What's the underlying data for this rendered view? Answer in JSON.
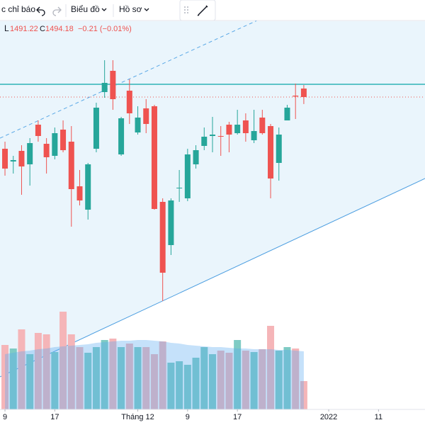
{
  "toolbar": {
    "indicators": "c chỉ báo",
    "chart": "Biểu đồ",
    "profile": "Hồ sơ"
  },
  "chart_data": {
    "type": "candlestick",
    "legend": {
      "low": "L",
      "close": "C",
      "change": "−0.21 (−0.01%)"
    },
    "x": [
      0,
      1,
      2,
      3,
      4,
      5,
      6,
      7,
      8,
      9,
      10,
      11,
      12,
      13,
      14,
      15,
      16,
      17,
      18,
      19,
      20,
      21,
      22,
      23,
      24,
      25,
      26,
      27,
      28,
      29,
      30,
      31,
      32,
      33,
      34,
      35,
      36
    ],
    "open": [
      1472.28,
      1466.88,
      1471.38,
      1465.68,
      1482.48,
      1474.38,
      1469.28,
      1480.38,
      1475.28,
      1456.38,
      1446.48,
      1472.28,
      1496.28,
      1505.28,
      1469.88,
      1496.88,
      1479.18,
      1489.38,
      1490.28,
      1449.78,
      1431.48,
      1455.48,
      1451.28,
      1465.68,
      1473.48,
      1477.68,
      1477.68,
      1482.48,
      1478.88,
      1484.28,
      1475.88,
      1485.48,
      1481.88,
      1466.28,
      1484.28,
      1494.78,
      1497.78
    ],
    "high": [
      1475.28,
      1469.28,
      1473.78,
      1476.78,
      1484.28,
      1476.78,
      1481.28,
      1484.28,
      1481.88,
      1463.28,
      1466.28,
      1491.78,
      1509.78,
      1509.78,
      1485.78,
      1501.68,
      1490.28,
      1493.28,
      1490.88,
      1451.28,
      1451.28,
      1463.28,
      1472.28,
      1473.78,
      1481.28,
      1485.78,
      1481.88,
      1483.68,
      1488.78,
      1487.28,
      1488.78,
      1488.78,
      1482.78,
      1481.28,
      1490.88,
      1499.88,
      1499.28
    ],
    "low": [
      1460.88,
      1461.78,
      1452.78,
      1456.68,
      1475.28,
      1461.78,
      1467.78,
      1470.78,
      1439.28,
      1448.28,
      1442.28,
      1470.78,
      1493.88,
      1488.78,
      1469.28,
      1482.78,
      1478.28,
      1478.88,
      1446.48,
      1407.78,
      1427.28,
      1449.78,
      1450.08,
      1463.88,
      1471.68,
      1470.78,
      1469.28,
      1470.78,
      1478.28,
      1475.28,
      1474.68,
      1478.28,
      1451.28,
      1458.78,
      1484.28,
      1484.88,
      1491.22
    ],
    "close": [
      1463.88,
      1467.48,
      1464.78,
      1474.68,
      1477.68,
      1468.68,
      1478.88,
      1471.68,
      1455.18,
      1450.38,
      1465.68,
      1489.68,
      1500.18,
      1493.28,
      1485.18,
      1487.28,
      1485.48,
      1482.78,
      1446.78,
      1419.78,
      1450.38,
      1455.78,
      1469.88,
      1471.68,
      1477.38,
      1478.28,
      1477.38,
      1478.28,
      1482.48,
      1478.88,
      1479.78,
      1478.88,
      1459.68,
      1478.28,
      1489.68,
      1494.39,
      1494.18
    ],
    "volume": [
      91,
      86,
      113,
      78,
      108,
      106,
      81,
      138,
      106,
      88,
      80,
      88,
      98,
      100,
      88,
      93,
      88,
      88,
      78,
      96,
      66,
      68,
      63,
      73,
      88,
      78,
      83,
      80,
      98,
      83,
      81,
      85,
      118,
      83,
      88,
      86,
      40
    ],
    "volume_ma": [
      78,
      80,
      82,
      83,
      85,
      86,
      88,
      89,
      90,
      91,
      92,
      94,
      95,
      96,
      97,
      97,
      98,
      98,
      97,
      96,
      94,
      93,
      91,
      90,
      89,
      88,
      88,
      87,
      86,
      86,
      85,
      85,
      85,
      84,
      84,
      83,
      82
    ],
    "xlim": [
      -0.6,
      50.6
    ],
    "ylim": [
      1361.28,
      1526.28
    ],
    "vlim": [
      0,
      300
    ],
    "xticks": [
      {
        "value": 0,
        "label": "9"
      },
      {
        "value": 6,
        "label": "17"
      },
      {
        "value": 16,
        "label": "Tháng 12"
      },
      {
        "value": 22,
        "label": "9"
      },
      {
        "value": 28,
        "label": "17"
      },
      {
        "value": 39,
        "label": "2022"
      },
      {
        "value": 45,
        "label": "11"
      }
    ],
    "up_color": "#26a69a",
    "down_color": "#ef5350",
    "up_volume_color": "#7fcbc4",
    "down_volume_color": "#f5b5b8",
    "volume_ma_color": "#5aa8f0"
  }
}
